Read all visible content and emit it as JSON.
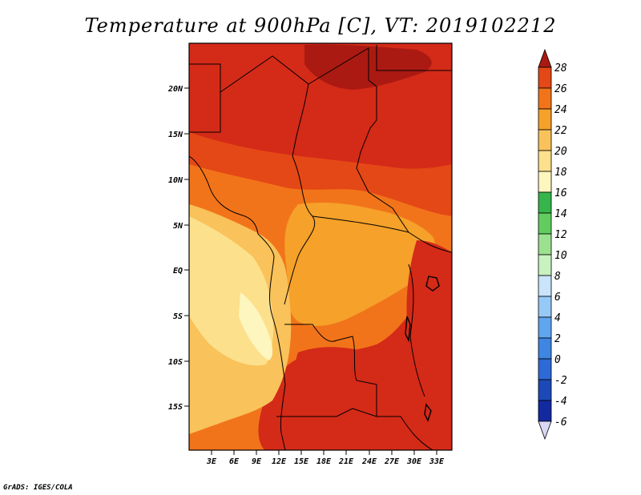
{
  "title": "Temperature at 900hPa [C], VT: 2019102212",
  "credit": "GrADS: IGES/COLA",
  "map": {
    "lon_labels": [
      "3E",
      "6E",
      "9E",
      "12E",
      "15E",
      "18E",
      "21E",
      "24E",
      "27E",
      "30E",
      "33E"
    ],
    "lat_labels": [
      "20N",
      "15N",
      "10N",
      "5N",
      "EQ",
      "5S",
      "10S",
      "15S"
    ]
  },
  "colorbar": {
    "levels": [
      {
        "label": "28",
        "color": "#d42a18"
      },
      {
        "label": "26",
        "color": "#e44816"
      },
      {
        "label": "24",
        "color": "#f2741a"
      },
      {
        "label": "22",
        "color": "#f5a12a"
      },
      {
        "label": "20",
        "color": "#f9c25a"
      },
      {
        "label": "18",
        "color": "#fde08c"
      },
      {
        "label": "16",
        "color": "#fdf6bf"
      },
      {
        "label": "14",
        "color": "#36b64a"
      },
      {
        "label": "12",
        "color": "#62cd5e"
      },
      {
        "label": "10",
        "color": "#9ce18f"
      },
      {
        "label": "8",
        "color": "#c8f2c0"
      },
      {
        "label": "6",
        "color": "#c9e4fb"
      },
      {
        "label": "4",
        "color": "#96c9f6"
      },
      {
        "label": "2",
        "color": "#5fa6ef"
      },
      {
        "label": "0",
        "color": "#3e86e2"
      },
      {
        "label": "-2",
        "color": "#2d6ad6"
      },
      {
        "label": "-4",
        "color": "#1c49b8"
      },
      {
        "label": "-6",
        "color": "#1329a0"
      }
    ],
    "top_color": "#aa1a12",
    "bottom_color": "#d8d8f4"
  }
}
